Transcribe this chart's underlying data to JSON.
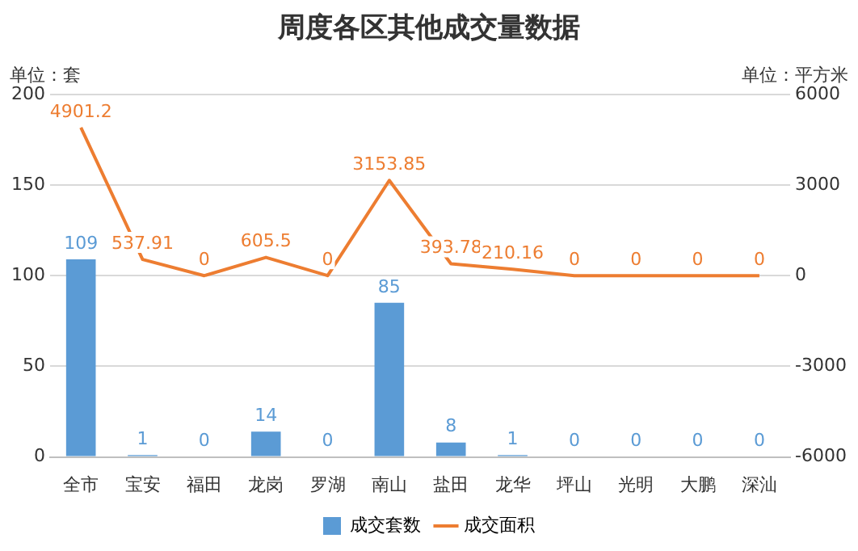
{
  "chart_data": {
    "type": "bar",
    "title": "周度各区其他成交量数据",
    "ylabel": "单位：套",
    "y2label": "单位：平方米",
    "categories": [
      "全市",
      "宝安",
      "福田",
      "龙岗",
      "罗湖",
      "南山",
      "盐田",
      "龙华",
      "坪山",
      "光明",
      "大鹏",
      "深汕"
    ],
    "series": [
      {
        "name": "成交套数",
        "color": "#5b9bd5",
        "values": [
          109,
          1,
          0,
          14,
          0,
          85,
          8,
          1,
          0,
          0,
          0,
          0
        ]
      },
      {
        "name": "成交面积",
        "type": "line",
        "axis": "y2",
        "color": "#ed7d31",
        "values": [
          4901.2,
          537.91,
          0,
          605.5,
          0,
          3153.85,
          393.78,
          210.16,
          0,
          0,
          0,
          0
        ]
      }
    ],
    "ylim": [
      0,
      200
    ],
    "yticks": [
      0,
      50,
      100,
      150,
      200
    ],
    "y2lim": [
      -6000,
      6000
    ],
    "y2ticks": [
      -6000,
      -3000,
      0,
      3000,
      6000
    ],
    "grid": "y",
    "legend": "bottom",
    "data_labels": true,
    "marker": "none",
    "line_style": "solid"
  }
}
